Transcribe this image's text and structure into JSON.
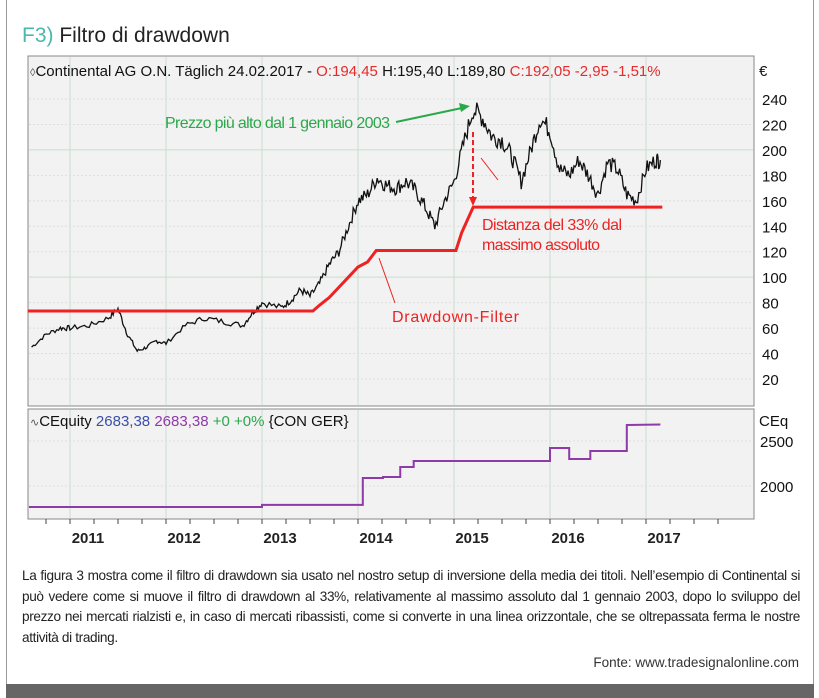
{
  "figure": {
    "label": "F3)",
    "title": "Filtro di drawdown",
    "caption": "La figura 3 mostra come il filtro di drawdown sia usato nel nostro setup di inversione della media dei titoli. Nell’esempio di Continental si può vedere come si muove il filtro di drawdown al 33%, relativamente al massimo assoluto dal 1 gennaio 2003, dopo lo sviluppo del prezzo nei mercati rialzisti e, in caso di mercati ribassisti, come si converte in una linea orizzontale, che se oltrepassata ferma le nostre attività di trading.",
    "source": "Fonte: www.tradesignalonline.com"
  },
  "chart_data": [
    {
      "type": "line",
      "header": {
        "instrument": "Continental AG O.N. Täglich 24.02.2017 -",
        "open": "O:194,45",
        "high_low": "H:195,40 L:189,80",
        "close": "C:192,05 -2,95 -1,51%"
      },
      "ylabel": "€",
      "ylim": [
        0,
        260
      ],
      "yticks": [
        20,
        40,
        60,
        80,
        100,
        120,
        140,
        160,
        180,
        200,
        220,
        240
      ],
      "xticks": [
        "2011",
        "2012",
        "2013",
        "2014",
        "2015",
        "2016",
        "2017"
      ],
      "xlim": [
        2010.56,
        2018.1
      ],
      "grid": true,
      "series": [
        {
          "color": "#111111",
          "x": [
            2010.6,
            2010.75,
            2010.9,
            2011.0,
            2011.2,
            2011.4,
            2011.5,
            2011.6,
            2011.7,
            2011.8,
            2011.9,
            2012.0,
            2012.2,
            2012.4,
            2012.6,
            2012.8,
            2012.9,
            2013.0,
            2013.2,
            2013.3,
            2013.4,
            2013.5,
            2013.6,
            2013.7,
            2013.8,
            2013.9,
            2014.0,
            2014.1,
            2014.2,
            2014.3,
            2014.4,
            2014.5,
            2014.6,
            2014.7,
            2014.8,
            2014.9,
            2015.0,
            2015.1,
            2015.2,
            2015.3,
            2015.4,
            2015.5,
            2015.6,
            2015.7,
            2015.8,
            2015.9,
            2016.0,
            2016.1,
            2016.2,
            2016.3,
            2016.4,
            2016.5,
            2016.6,
            2016.7,
            2016.8,
            2016.9,
            2017.0,
            2017.1,
            2017.15
          ],
          "y": [
            45,
            55,
            60,
            60,
            62,
            68,
            75,
            55,
            42,
            45,
            50,
            48,
            62,
            68,
            65,
            62,
            72,
            80,
            76,
            82,
            90,
            85,
            95,
            110,
            120,
            140,
            160,
            165,
            178,
            172,
            170,
            175,
            168,
            155,
            140,
            160,
            175,
            205,
            232,
            225,
            210,
            208,
            195,
            175,
            200,
            225,
            215,
            185,
            180,
            192,
            180,
            165,
            190,
            185,
            165,
            160,
            185,
            192,
            192
          ]
        },
        {
          "name": "Drawdown-Filter",
          "color": "#ee2222",
          "x": [
            2010.56,
            2013.53,
            2013.6,
            2013.7,
            2013.8,
            2013.9,
            2014.0,
            2014.1,
            2014.19,
            2015.02,
            2015.08,
            2015.14,
            2015.2,
            2017.17
          ],
          "y": [
            73.4,
            73.4,
            78,
            84,
            92,
            100,
            108,
            112,
            121,
            121,
            135,
            145,
            155,
            155
          ]
        }
      ],
      "annotations": [
        {
          "text": "Prezzo più alto dal 1 gennaio 2003",
          "color": "#2aa84a"
        },
        {
          "text": "Distanza del 33% dal",
          "color": "#ee2222"
        },
        {
          "text": "massimo assoluto",
          "color": "#ee2222"
        },
        {
          "text": "Drawdown-Filter",
          "color": "#ee2222"
        }
      ]
    },
    {
      "type": "line",
      "header": {
        "name": "CEquity",
        "value1": "2683,38",
        "value2": "2683,38",
        "change": "+0 +0%",
        "symbol": "{CON GER}"
      },
      "ylabel": "CEq",
      "yticks": [
        2000,
        2500
      ],
      "ylim": [
        1550,
        2850
      ],
      "series": [
        {
          "color": "#8e3aa8",
          "x": [
            2010.56,
            2013.0,
            2013.0,
            2014.05,
            2014.05,
            2014.26,
            2014.26,
            2014.44,
            2014.44,
            2014.58,
            2014.58,
            2016.0,
            2016.0,
            2016.2,
            2016.2,
            2016.42,
            2016.42,
            2016.8,
            2016.8,
            2017.15
          ],
          "y": [
            1767,
            1767,
            1790,
            1790,
            2089,
            2089,
            2100,
            2100,
            2211,
            2211,
            2278,
            2278,
            2422,
            2422,
            2300,
            2300,
            2389,
            2389,
            2678,
            2683
          ]
        }
      ]
    }
  ],
  "colors": {
    "accent": "#4bb8b0",
    "up_signal": "#2aa84a",
    "down_signal": "#ee2222",
    "equity_value": "#3b4fa8",
    "equity_value2": "#8e3aa8"
  }
}
